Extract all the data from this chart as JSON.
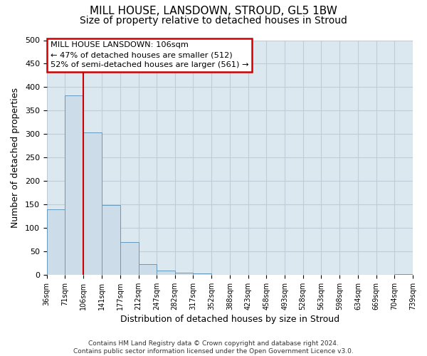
{
  "title": "MILL HOUSE, LANSDOWN, STROUD, GL5 1BW",
  "subtitle": "Size of property relative to detached houses in Stroud",
  "xlabel": "Distribution of detached houses by size in Stroud",
  "ylabel": "Number of detached properties",
  "footer_line1": "Contains HM Land Registry data © Crown copyright and database right 2024.",
  "footer_line2": "Contains public sector information licensed under the Open Government Licence v3.0.",
  "bin_edges": [
    36,
    71,
    106,
    141,
    177,
    212,
    247,
    282,
    317,
    352,
    388,
    423,
    458,
    493,
    528,
    563,
    598,
    634,
    669,
    704,
    739
  ],
  "bin_counts": [
    140,
    383,
    304,
    148,
    70,
    22,
    9,
    5,
    3,
    0,
    0,
    0,
    0,
    0,
    0,
    0,
    0,
    0,
    0,
    2
  ],
  "bar_color": "#ccdce8",
  "bar_edge_color": "#6699bb",
  "property_size": 106,
  "vline_color": "#cc0000",
  "annotation_text_line1": "MILL HOUSE LANSDOWN: 106sqm",
  "annotation_text_line2": "← 47% of detached houses are smaller (512)",
  "annotation_text_line3": "52% of semi-detached houses are larger (561) →",
  "annotation_box_color": "#cc0000",
  "ylim": [
    0,
    500
  ],
  "yticks": [
    0,
    50,
    100,
    150,
    200,
    250,
    300,
    350,
    400,
    450,
    500
  ],
  "grid_color": "#c0ccd8",
  "plot_bg_color": "#dce8f0",
  "fig_bg_color": "#ffffff",
  "title_fontsize": 11,
  "subtitle_fontsize": 10,
  "axis_label_fontsize": 9,
  "tick_fontsize": 8,
  "footer_fontsize": 6.5
}
